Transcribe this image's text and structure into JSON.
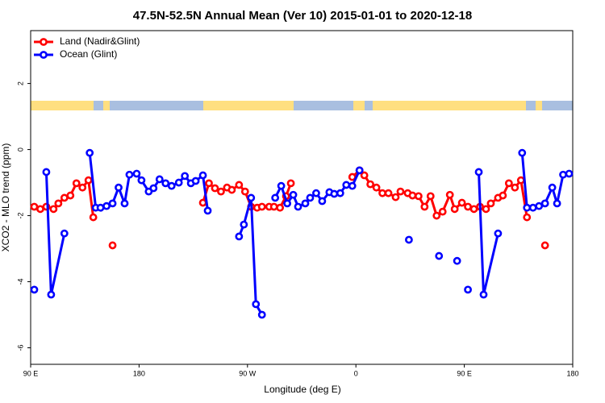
{
  "chart_data": {
    "type": "line",
    "title": "47.5N-52.5N Annual Mean (Ver 10)   2015-01-01 to 2020-12-18",
    "xlabel": "Longitude (deg E)",
    "ylabel": "XCO2 - MLO trend (ppm)",
    "xlim": [
      90,
      540
    ],
    "xticks": [
      {
        "value": 90,
        "label": "90 E"
      },
      180,
      {
        "value": 270,
        "label": "90 W"
      },
      {
        "value": 360,
        "label": "0"
      },
      {
        "value": 450,
        "label": "90 E"
      },
      {
        "value": 540,
        "label": "180"
      }
    ],
    "ylim": [
      -6.5,
      3.6
    ],
    "yticks": [
      -6,
      -4,
      -2,
      0,
      2
    ],
    "legend": "topleft",
    "series": [
      {
        "name": "Land (Nadir&Glint)",
        "color": "#ff0000",
        "x": [
          93,
          98,
          103,
          109,
          113,
          118,
          123,
          128,
          133,
          138,
          142,
          null,
          158,
          null,
          233,
          238,
          243,
          248,
          253,
          257,
          263,
          268,
          273,
          278,
          282,
          288,
          292,
          297,
          302,
          306,
          null,
          357,
          363,
          367,
          372,
          377,
          382,
          387,
          393,
          397,
          403,
          407,
          412,
          417,
          422,
          427,
          432,
          438,
          442,
          448,
          453,
          458,
          463,
          468,
          472,
          478,
          482,
          487,
          492,
          497,
          502,
          null,
          517
        ],
        "values": [
          -1.73,
          -1.8,
          -1.73,
          -1.8,
          -1.63,
          -1.46,
          -1.39,
          -1.02,
          -1.15,
          -0.93,
          -2.05,
          null,
          -2.9,
          null,
          -1.61,
          -1.02,
          -1.17,
          -1.27,
          -1.15,
          -1.22,
          -1.07,
          -1.27,
          -1.73,
          -1.76,
          -1.73,
          -1.73,
          -1.73,
          -1.76,
          -1.41,
          -1.02,
          null,
          -0.83,
          -0.63,
          -0.78,
          -1.05,
          -1.15,
          -1.32,
          -1.32,
          -1.44,
          -1.27,
          -1.32,
          -1.39,
          -1.41,
          -1.73,
          -1.41,
          -2.0,
          -1.88,
          -1.37,
          -1.8,
          -1.61,
          -1.73,
          -1.8,
          -1.73,
          -1.8,
          -1.63,
          -1.46,
          -1.39,
          -1.02,
          -1.15,
          -0.93,
          -2.05,
          null,
          -2.9
        ]
      },
      {
        "name": "Ocean (Glint)",
        "color": "#0000ff",
        "x": [
          93,
          null,
          103,
          107,
          118,
          null,
          139,
          144,
          148,
          153,
          158,
          163,
          168,
          172,
          178,
          182,
          188,
          192,
          197,
          202,
          207,
          213,
          218,
          223,
          227,
          233,
          237,
          null,
          263,
          267,
          273,
          277,
          282,
          null,
          293,
          298,
          303,
          308,
          312,
          318,
          322,
          327,
          332,
          338,
          342,
          347,
          352,
          357,
          363,
          null,
          404,
          null,
          429,
          null,
          444,
          null,
          453,
          null,
          462,
          466,
          478,
          null,
          498,
          502,
          507,
          512,
          517,
          523,
          527,
          532,
          537
        ],
        "values": [
          -4.24,
          null,
          -0.68,
          -4.39,
          -2.54,
          null,
          -0.1,
          -1.76,
          -1.76,
          -1.71,
          -1.63,
          -1.15,
          -1.63,
          -0.76,
          -0.73,
          -0.93,
          -1.27,
          -1.17,
          -0.9,
          -1.02,
          -1.1,
          -1.0,
          -0.8,
          -1.02,
          -0.95,
          -0.78,
          -1.85,
          null,
          -2.63,
          -2.27,
          -1.46,
          -4.68,
          -5.0,
          null,
          -1.46,
          -1.1,
          -1.63,
          -1.37,
          -1.73,
          -1.63,
          -1.46,
          -1.32,
          -1.56,
          -1.29,
          -1.34,
          -1.32,
          -1.07,
          -1.1,
          -0.63,
          null,
          -2.73,
          null,
          -3.22,
          null,
          -3.37,
          null,
          -4.24,
          null,
          -0.68,
          -4.39,
          -2.54,
          null,
          -0.1,
          -1.76,
          -1.76,
          -1.71,
          -1.63,
          -1.15,
          -1.63,
          -0.76,
          -0.73
        ]
      }
    ]
  }
}
